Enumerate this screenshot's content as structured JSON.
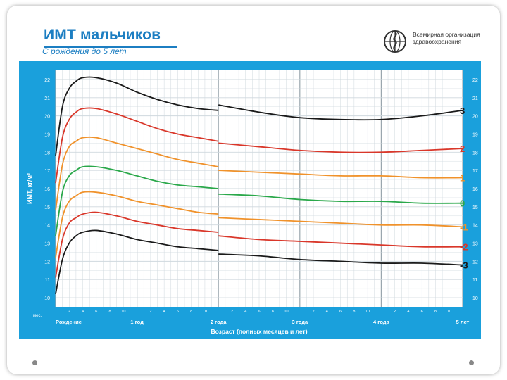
{
  "header": {
    "title": "ИМТ мальчиков",
    "subtitle": "С рождения до 5 лет",
    "org_name": "Всемирная организация здравоохранения",
    "logo_icon": "who-emblem-icon"
  },
  "colors": {
    "panel": "#1aa0dc",
    "grid_bg": "#ffffff",
    "grid_line": "#cfd8de",
    "z3": "#1a1a1a",
    "z2": "#d9372a",
    "z1": "#f0922b",
    "z0": "#2aa84a"
  },
  "chart_data": {
    "type": "line",
    "title": "ИМТ мальчиков",
    "subtitle": "С рождения до 5 лет",
    "xlabel": "Возраст (полных месяцев и лет)",
    "ylabel": "ИМТ, кг/м²",
    "x_unit_label": "мес.",
    "xlim": [
      0,
      60
    ],
    "ylim": [
      9.5,
      22.5
    ],
    "y_ticks": [
      10,
      11,
      12,
      13,
      14,
      15,
      16,
      17,
      18,
      19,
      20,
      21,
      22
    ],
    "x_year_labels": [
      {
        "x": 0,
        "label": "Рождение"
      },
      {
        "x": 12,
        "label": "1 год"
      },
      {
        "x": 24,
        "label": "2 года"
      },
      {
        "x": 36,
        "label": "3 года"
      },
      {
        "x": 48,
        "label": "4 года"
      },
      {
        "x": 60,
        "label": "5 лет"
      }
    ],
    "x_month_ticks": [
      {
        "x": 2,
        "label": "2"
      },
      {
        "x": 4,
        "label": "4"
      },
      {
        "x": 6,
        "label": "6"
      },
      {
        "x": 8,
        "label": "8"
      },
      {
        "x": 10,
        "label": "10"
      },
      {
        "x": 14,
        "label": "2"
      },
      {
        "x": 16,
        "label": "4"
      },
      {
        "x": 18,
        "label": "6"
      },
      {
        "x": 20,
        "label": "8"
      },
      {
        "x": 22,
        "label": "10"
      },
      {
        "x": 26,
        "label": "2"
      },
      {
        "x": 28,
        "label": "4"
      },
      {
        "x": 30,
        "label": "6"
      },
      {
        "x": 32,
        "label": "8"
      },
      {
        "x": 34,
        "label": "10"
      },
      {
        "x": 38,
        "label": "2"
      },
      {
        "x": 40,
        "label": "4"
      },
      {
        "x": 42,
        "label": "6"
      },
      {
        "x": 44,
        "label": "8"
      },
      {
        "x": 46,
        "label": "10"
      },
      {
        "x": 50,
        "label": "2"
      },
      {
        "x": 52,
        "label": "4"
      },
      {
        "x": 54,
        "label": "6"
      },
      {
        "x": 56,
        "label": "8"
      },
      {
        "x": 58,
        "label": "10"
      }
    ],
    "break_at": 24,
    "x": [
      0,
      1,
      2,
      3,
      4,
      6,
      9,
      12,
      15,
      18,
      21,
      24,
      24,
      30,
      36,
      42,
      48,
      54,
      60
    ],
    "series": [
      {
        "name": "3",
        "color": "#1a1a1a",
        "values": [
          17.8,
          20.5,
          21.5,
          21.9,
          22.1,
          22.1,
          21.8,
          21.3,
          20.9,
          20.6,
          20.4,
          20.3,
          20.6,
          20.2,
          19.9,
          19.8,
          19.8,
          20.0,
          20.3
        ]
      },
      {
        "name": "2",
        "color": "#d9372a",
        "values": [
          16.3,
          18.8,
          19.8,
          20.2,
          20.4,
          20.4,
          20.1,
          19.7,
          19.3,
          19.0,
          18.8,
          18.6,
          18.5,
          18.3,
          18.1,
          18.0,
          18.0,
          18.1,
          18.2
        ]
      },
      {
        "name": "1",
        "color": "#f0922b",
        "values": [
          14.8,
          17.3,
          18.3,
          18.6,
          18.8,
          18.8,
          18.5,
          18.2,
          17.9,
          17.6,
          17.4,
          17.2,
          17.0,
          16.9,
          16.8,
          16.7,
          16.7,
          16.6,
          16.6
        ]
      },
      {
        "name": "0",
        "color": "#2aa84a",
        "values": [
          13.4,
          15.8,
          16.7,
          17.0,
          17.2,
          17.2,
          17.0,
          16.7,
          16.4,
          16.2,
          16.1,
          16.0,
          15.7,
          15.6,
          15.4,
          15.3,
          15.3,
          15.2,
          15.2
        ]
      },
      {
        "name": "-1",
        "color": "#f0922b",
        "values": [
          12.2,
          14.4,
          15.3,
          15.6,
          15.8,
          15.8,
          15.6,
          15.3,
          15.1,
          14.9,
          14.7,
          14.6,
          14.4,
          14.3,
          14.2,
          14.1,
          14.0,
          14.0,
          13.9
        ]
      },
      {
        "name": "-2",
        "color": "#d9372a",
        "values": [
          11.1,
          13.2,
          14.1,
          14.4,
          14.6,
          14.7,
          14.5,
          14.2,
          14.0,
          13.8,
          13.7,
          13.6,
          13.4,
          13.2,
          13.1,
          13.0,
          12.9,
          12.8,
          12.8
        ]
      },
      {
        "name": "-3",
        "color": "#1a1a1a",
        "values": [
          10.2,
          12.1,
          13.0,
          13.4,
          13.6,
          13.7,
          13.5,
          13.2,
          13.0,
          12.8,
          12.7,
          12.6,
          12.4,
          12.3,
          12.1,
          12.0,
          11.9,
          11.9,
          11.8
        ]
      }
    ]
  }
}
